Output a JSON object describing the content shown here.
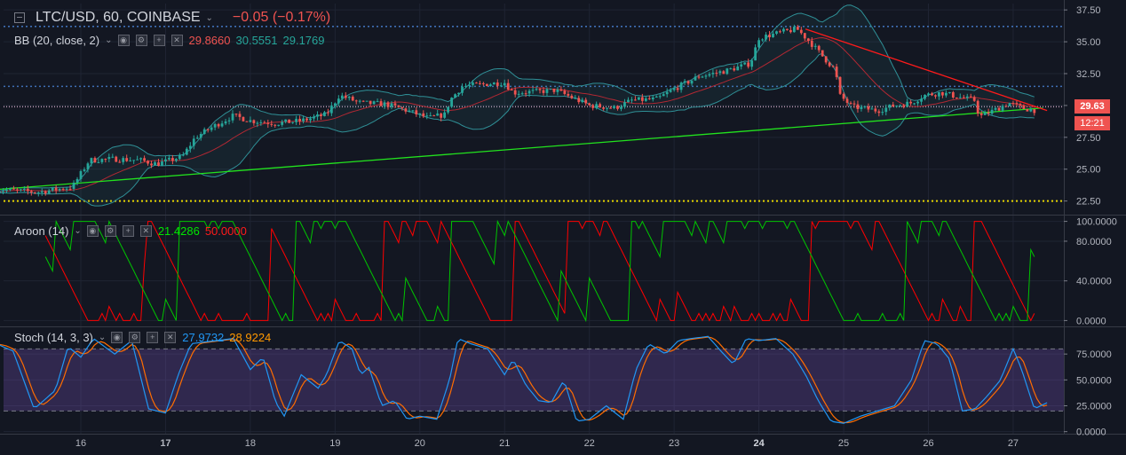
{
  "header": {
    "symbol": "LTC/USD, 60, COINBASE",
    "change": "−0.05 (−0.17%)",
    "last_price": "29.63",
    "countdown": "12:21"
  },
  "colors": {
    "background": "#131722",
    "up": "#26a69a",
    "down": "#ef5350",
    "bb_basis": "#b22833",
    "bb_band": "#2f8f96",
    "aroon_up": "#00c400",
    "aroon_down": "#ff0000",
    "stoch_k": "#2196f3",
    "stoch_d": "#ff6d00",
    "stoch_band": "#7e57c2"
  },
  "indicators": {
    "bb": {
      "label": "BB (20, close, 2)",
      "v1": "29.8660",
      "v2": "30.5551",
      "v3": "29.1769"
    },
    "aroon": {
      "label": "Aroon (14)",
      "v1": "21.4286",
      "v2": "50.0000"
    },
    "stoch": {
      "label": "Stoch (14, 3, 3)",
      "v1": "27.9732",
      "v2": "28.9224"
    }
  },
  "chart_data": [
    {
      "type": "candlestick",
      "x_tick_labels": [
        "16",
        "17",
        "18",
        "19",
        "20",
        "21",
        "22",
        "23",
        "24",
        "25",
        "26",
        "27"
      ],
      "y_tick_labels": [
        "37.50",
        "35.00",
        "32.50",
        "30.00",
        "27.50",
        "25.00",
        "22.50"
      ],
      "ylim": [
        21.5,
        38
      ],
      "close_path": [
        [
          15.0,
          23.4
        ],
        [
          15.5,
          23.2
        ],
        [
          15.9,
          23.6
        ],
        [
          16.1,
          25.7
        ],
        [
          16.4,
          25.8
        ],
        [
          16.7,
          25.7
        ],
        [
          16.9,
          25.4
        ],
        [
          17.2,
          26.0
        ],
        [
          17.35,
          27.5
        ],
        [
          17.55,
          28.3
        ],
        [
          17.8,
          29.2
        ],
        [
          18.0,
          28.8
        ],
        [
          18.3,
          28.6
        ],
        [
          18.6,
          28.8
        ],
        [
          18.9,
          29.3
        ],
        [
          19.05,
          30.8
        ],
        [
          19.3,
          30.2
        ],
        [
          19.6,
          30.1
        ],
        [
          19.85,
          29.6
        ],
        [
          20.1,
          29.0
        ],
        [
          20.3,
          29.3
        ],
        [
          20.35,
          30.4
        ],
        [
          20.5,
          31.5
        ],
        [
          20.8,
          31.7
        ],
        [
          21.0,
          31.8
        ],
        [
          21.1,
          31.0
        ],
        [
          21.4,
          31.1
        ],
        [
          21.6,
          31.2
        ],
        [
          21.8,
          30.6
        ],
        [
          22.0,
          30.0
        ],
        [
          22.3,
          29.8
        ],
        [
          22.5,
          30.4
        ],
        [
          22.8,
          30.5
        ],
        [
          23.0,
          31.3
        ],
        [
          23.3,
          32.3
        ],
        [
          23.6,
          32.7
        ],
        [
          23.9,
          33.3
        ],
        [
          24.0,
          35.3
        ],
        [
          24.3,
          35.8
        ],
        [
          24.45,
          36.0
        ],
        [
          24.6,
          35.0
        ],
        [
          24.8,
          33.5
        ],
        [
          24.9,
          32.8
        ],
        [
          24.95,
          30.8
        ],
        [
          25.1,
          29.9
        ],
        [
          25.4,
          29.6
        ],
        [
          25.6,
          30.0
        ],
        [
          25.8,
          30.2
        ],
        [
          25.95,
          30.8
        ],
        [
          26.15,
          31.0
        ],
        [
          26.4,
          30.6
        ],
        [
          26.55,
          30.4
        ],
        [
          26.6,
          29.1
        ],
        [
          26.8,
          29.7
        ],
        [
          26.95,
          30.2
        ],
        [
          27.1,
          29.8
        ],
        [
          27.25,
          29.63
        ]
      ],
      "horizontal_levels": [
        36.2,
        31.5,
        29.9,
        22.5
      ],
      "trendlines": [
        {
          "color": "green",
          "from": [
            15.0,
            23.4
          ],
          "to": [
            27.35,
            29.8
          ]
        },
        {
          "color": "red",
          "from": [
            24.55,
            36.0
          ],
          "to": [
            27.4,
            29.6
          ]
        }
      ]
    },
    {
      "type": "line",
      "name": "Aroon (14)",
      "y_tick_labels": [
        "100.0000",
        "80.0000",
        "40.0000",
        "0.0000"
      ],
      "ylim": [
        -5,
        105
      ],
      "series": [
        {
          "name": "Aroon Up",
          "final_value": 21.4286
        },
        {
          "name": "Aroon Down",
          "final_value": 50.0
        }
      ]
    },
    {
      "type": "line",
      "name": "Stoch (14, 3, 3)",
      "y_tick_labels": [
        "75.0000",
        "50.0000",
        "25.0000",
        "0.0000"
      ],
      "ylim": [
        -2,
        100
      ],
      "bands": [
        20,
        80
      ],
      "series": [
        {
          "name": "%K",
          "final_value": 27.9732
        },
        {
          "name": "%D",
          "final_value": 28.9224
        }
      ],
      "k_path": [
        [
          15.0,
          85
        ],
        [
          15.2,
          78
        ],
        [
          15.45,
          22
        ],
        [
          15.7,
          40
        ],
        [
          15.85,
          82
        ],
        [
          16.0,
          72
        ],
        [
          16.15,
          90
        ],
        [
          16.4,
          75
        ],
        [
          16.6,
          88
        ],
        [
          16.8,
          22
        ],
        [
          17.0,
          18
        ],
        [
          17.15,
          55
        ],
        [
          17.3,
          85
        ],
        [
          17.6,
          88
        ],
        [
          17.8,
          90
        ],
        [
          18.0,
          60
        ],
        [
          18.15,
          72
        ],
        [
          18.3,
          28
        ],
        [
          18.4,
          15
        ],
        [
          18.6,
          55
        ],
        [
          18.8,
          42
        ],
        [
          18.9,
          55
        ],
        [
          19.05,
          88
        ],
        [
          19.2,
          80
        ],
        [
          19.3,
          55
        ],
        [
          19.4,
          62
        ],
        [
          19.55,
          25
        ],
        [
          19.7,
          30
        ],
        [
          19.85,
          12
        ],
        [
          20.0,
          15
        ],
        [
          20.2,
          12
        ],
        [
          20.35,
          50
        ],
        [
          20.45,
          90
        ],
        [
          20.6,
          85
        ],
        [
          20.8,
          80
        ],
        [
          21.0,
          55
        ],
        [
          21.1,
          70
        ],
        [
          21.25,
          45
        ],
        [
          21.4,
          30
        ],
        [
          21.55,
          28
        ],
        [
          21.7,
          50
        ],
        [
          21.85,
          10
        ],
        [
          22.0,
          12
        ],
        [
          22.2,
          25
        ],
        [
          22.4,
          12
        ],
        [
          22.55,
          60
        ],
        [
          22.7,
          85
        ],
        [
          22.9,
          75
        ],
        [
          23.05,
          88
        ],
        [
          23.2,
          90
        ],
        [
          23.4,
          92
        ],
        [
          23.55,
          78
        ],
        [
          23.7,
          65
        ],
        [
          23.85,
          90
        ],
        [
          24.0,
          88
        ],
        [
          24.2,
          90
        ],
        [
          24.4,
          75
        ],
        [
          24.55,
          55
        ],
        [
          24.7,
          30
        ],
        [
          24.85,
          10
        ],
        [
          25.0,
          8
        ],
        [
          25.2,
          15
        ],
        [
          25.4,
          20
        ],
        [
          25.6,
          25
        ],
        [
          25.8,
          50
        ],
        [
          25.95,
          88
        ],
        [
          26.1,
          85
        ],
        [
          26.25,
          70
        ],
        [
          26.4,
          20
        ],
        [
          26.55,
          22
        ],
        [
          26.7,
          35
        ],
        [
          26.85,
          50
        ],
        [
          27.0,
          80
        ],
        [
          27.1,
          60
        ],
        [
          27.25,
          22
        ],
        [
          27.4,
          28
        ]
      ]
    }
  ]
}
